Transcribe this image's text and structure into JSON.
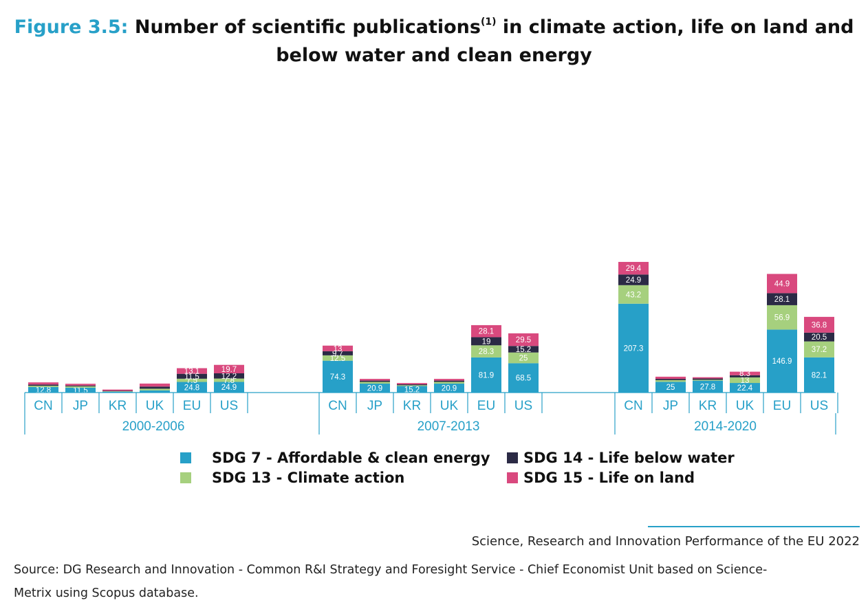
{
  "title": {
    "figure_label": "Figure 3.5:",
    "text_a": "Number of scientific publications",
    "superscript": "(1)",
    "text_b": "in climate action, life on land and",
    "text_c": "below water and clean energy"
  },
  "colors": {
    "sdg7": "#27a0c8",
    "sdg13": "#a6d07e",
    "sdg14": "#2b2a45",
    "sdg15": "#d9497e",
    "axis": "#27a0c8"
  },
  "chart_data": {
    "type": "bar",
    "stacked": true,
    "title": "Number of scientific publications in climate action, life on land and below water and clean energy",
    "series_order": [
      "sdg7",
      "sdg13",
      "sdg14",
      "sdg15"
    ],
    "series_names": {
      "sdg7": "SDG 7 - Affordable & clean energy",
      "sdg13": "SDG 13 - Climate action",
      "sdg14": "SDG 14 - Life below water",
      "sdg15": "SDG 15 - Life on land"
    },
    "ylim": [
      0,
      340
    ],
    "groups": [
      {
        "period": "2000-2006",
        "bars": [
          {
            "country": "CN",
            "sdg7": 12.8,
            "sdg13": 3,
            "sdg14": 3,
            "sdg15": 5,
            "labels": {
              "sdg7": "12.8"
            }
          },
          {
            "country": "JP",
            "sdg7": 11.5,
            "sdg13": 3,
            "sdg14": 2,
            "sdg15": 4,
            "labels": {
              "sdg7": "11.5"
            }
          },
          {
            "country": "KR",
            "sdg7": 2,
            "sdg13": 1,
            "sdg14": 1,
            "sdg15": 3,
            "labels": {}
          },
          {
            "country": "UK",
            "sdg7": 5,
            "sdg13": 4,
            "sdg14": 5,
            "sdg15": 7,
            "labels": {}
          },
          {
            "country": "EU",
            "sdg7": 24.8,
            "sdg13": 7.5,
            "sdg14": 11.5,
            "sdg15": 13.1,
            "labels": {
              "sdg7": "24.8",
              "sdg13": "7.5",
              "sdg14": "11.5",
              "sdg15": "13.1"
            }
          },
          {
            "country": "US",
            "sdg7": 24.9,
            "sdg13": 7.8,
            "sdg14": 12.2,
            "sdg15": 19.7,
            "labels": {
              "sdg7": "24.9",
              "sdg13": "7.8",
              "sdg14": "12.2",
              "sdg15": "19.7"
            }
          }
        ]
      },
      {
        "period": "2007-2013",
        "bars": [
          {
            "country": "CN",
            "sdg7": 74.3,
            "sdg13": 12.5,
            "sdg14": 9.7,
            "sdg15": 13,
            "labels": {
              "sdg7": "74.3",
              "sdg13": "12.5",
              "sdg14": "9.7",
              "sdg15": "13"
            }
          },
          {
            "country": "JP",
            "sdg7": 20.9,
            "sdg13": 4,
            "sdg14": 3,
            "sdg15": 4,
            "labels": {
              "sdg7": "20.9"
            }
          },
          {
            "country": "KR",
            "sdg7": 15.2,
            "sdg13": 2,
            "sdg14": 2,
            "sdg15": 3,
            "labels": {
              "sdg7": "15.2"
            }
          },
          {
            "country": "UK",
            "sdg7": 20.9,
            "sdg13": 4,
            "sdg14": 3,
            "sdg15": 4,
            "labels": {
              "sdg7": "20.9"
            }
          },
          {
            "country": "EU",
            "sdg7": 81.9,
            "sdg13": 28.3,
            "sdg14": 19,
            "sdg15": 28.1,
            "labels": {
              "sdg7": "81.9",
              "sdg13": "28.3",
              "sdg14": "19",
              "sdg15": "28.1"
            }
          },
          {
            "country": "US",
            "sdg7": 68.5,
            "sdg13": 25,
            "sdg14": 15.2,
            "sdg15": 29.5,
            "labels": {
              "sdg7": "68.5",
              "sdg13": "25",
              "sdg14": "15.2",
              "sdg15": "29.5"
            }
          }
        ]
      },
      {
        "period": "2014-2020",
        "bars": [
          {
            "country": "CN",
            "sdg7": 207.3,
            "sdg13": 43.2,
            "sdg14": 24.9,
            "sdg15": 29.4,
            "labels": {
              "sdg7": "207.3",
              "sdg13": "43.2",
              "sdg14": "24.9",
              "sdg15": "29.4"
            }
          },
          {
            "country": "JP",
            "sdg7": 25,
            "sdg13": 4,
            "sdg14": 3,
            "sdg15": 5,
            "labels": {
              "sdg7": "25"
            }
          },
          {
            "country": "KR",
            "sdg7": 27.8,
            "sdg13": 2,
            "sdg14": 3,
            "sdg15": 3,
            "labels": {
              "sdg7": "27.8"
            }
          },
          {
            "country": "UK",
            "sdg7": 22.4,
            "sdg13": 13,
            "sdg14": 5,
            "sdg15": 8.3,
            "labels": {
              "sdg7": "22.4",
              "sdg13": "13",
              "sdg15": "8.3"
            }
          },
          {
            "country": "EU",
            "sdg7": 146.9,
            "sdg13": 56.9,
            "sdg14": 28.1,
            "sdg15": 44.9,
            "labels": {
              "sdg7": "146.9",
              "sdg13": "56.9",
              "sdg14": "28.1",
              "sdg15": "44.9"
            }
          },
          {
            "country": "US",
            "sdg7": 82.1,
            "sdg13": 37.2,
            "sdg14": 20.5,
            "sdg15": 36.8,
            "labels": {
              "sdg7": "82.1",
              "sdg13": "37.2",
              "sdg14": "20.5",
              "sdg15": "36.8"
            }
          }
        ]
      }
    ]
  },
  "legend": {
    "sdg7": "SDG 7 - Affordable & clean energy",
    "sdg13": "SDG 13 - Climate action",
    "sdg14": "SDG 14 - Life below water",
    "sdg15": "SDG 15 - Life on land"
  },
  "footer": {
    "report": "Science, Research and Innovation Performance of the EU 2022",
    "source_line1": "Source: DG Research and Innovation - Common R&I Strategy and Foresight Service - Chief Economist Unit based on Science-",
    "source_line2": "Metrix using Scopus database."
  }
}
